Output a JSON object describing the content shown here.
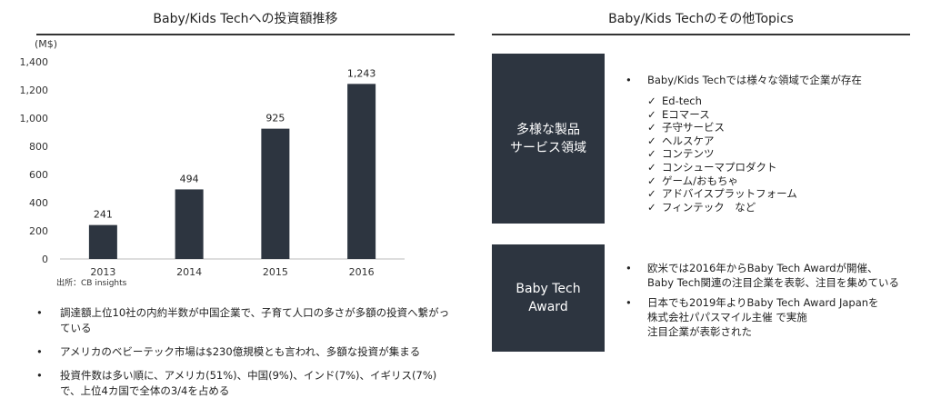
{
  "left": {
    "title": "Baby/Kids Techへの投資額推移",
    "source": "出所：CB insights",
    "bullets": [
      "調達額上位10社の内約半数が中国企業で、子育て人口の多さが多額の投資へ繋がっている",
      "アメリカのベビーテック市場は$230億規模とも言われ、多額な投資が集まる",
      "投資件数は多い順に、アメリカ(51%)、中国(9%)、インド(7%)、イギリス(7%)で、上位4カ国で全体の3/4を占める"
    ]
  },
  "chart_data": {
    "type": "bar",
    "title": "Baby/Kids Techへの投資額推移",
    "ylabel": "(M$)",
    "categories": [
      "2013",
      "2014",
      "2015",
      "2016"
    ],
    "values": [
      241,
      494,
      925,
      1243
    ],
    "ylim": [
      0,
      1400
    ],
    "yticks": [
      0,
      200,
      400,
      600,
      800,
      1000,
      1200,
      1400
    ],
    "ytick_labels": [
      "0",
      "200",
      "400",
      "600",
      "800",
      "1,000",
      "1,200",
      "1,400"
    ],
    "data_labels": [
      "241",
      "494",
      "925",
      "1,243"
    ],
    "bar_color": "#2d3540",
    "grid": false,
    "legend": "none"
  },
  "right": {
    "title": "Baby/Kids Techのその他Topics",
    "box1_label": "多様な製品\nサービス領域",
    "box1_intro": "Baby/Kids Techでは様々な領域で企業が存在",
    "check_mark": "✓",
    "check_items": [
      "Ed-tech",
      "Eコマース",
      "子守サービス",
      "ヘルスケア",
      "コンテンツ",
      "コンシューマプロダクト",
      "ゲーム/おもちゃ",
      "アドバイスプラットフォーム",
      "フィンテック　など"
    ],
    "box2_label": "Baby Tech\nAward",
    "box2_bullets": [
      "欧米では2016年からBaby Tech Awardが開催、\nBaby Tech関連の注目企業を表彰、注目を集めている",
      "日本でも2019年よりBaby Tech Award Japanを\n株式会社パパスマイル主催 で実施\n注目企業が表彰された"
    ]
  },
  "colors": {
    "dark": "#2d3540",
    "rule": "#333333"
  }
}
